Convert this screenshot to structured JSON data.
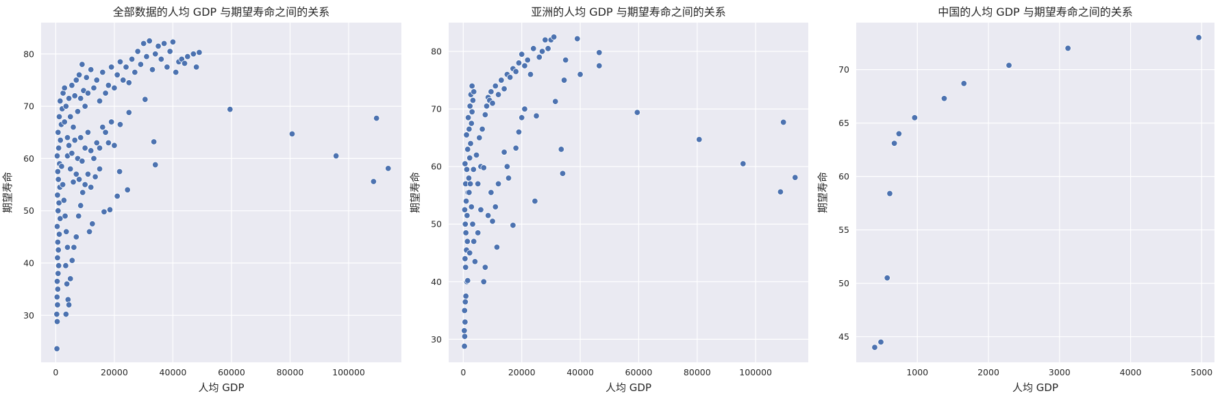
{
  "chart_data": [
    {
      "type": "scatter",
      "title": "全部数据的人均 GDP 与期望寿命之间的关系",
      "xlabel": "人均 GDP",
      "ylabel": "期望寿命",
      "xlim": [
        -5000,
        118000
      ],
      "ylim": [
        21,
        86
      ],
      "xticks": [
        0,
        20000,
        40000,
        60000,
        80000,
        100000
      ],
      "yticks": [
        30,
        40,
        50,
        60,
        70,
        80
      ],
      "grid": true,
      "marker_color": "#4c72b0",
      "points": [
        [
          400,
          23.6
        ],
        [
          500,
          28.8
        ],
        [
          350,
          30.2
        ],
        [
          600,
          32.0
        ],
        [
          450,
          33.5
        ],
        [
          700,
          35.0
        ],
        [
          500,
          36.5
        ],
        [
          800,
          38.0
        ],
        [
          1000,
          39.5
        ],
        [
          600,
          41.0
        ],
        [
          900,
          42.5
        ],
        [
          700,
          44.0
        ],
        [
          1200,
          45.5
        ],
        [
          500,
          47.0
        ],
        [
          1500,
          48.5
        ],
        [
          800,
          50.0
        ],
        [
          1100,
          51.5
        ],
        [
          600,
          53.0
        ],
        [
          1400,
          54.5
        ],
        [
          900,
          56.0
        ],
        [
          700,
          57.5
        ],
        [
          1300,
          59.0
        ],
        [
          500,
          60.5
        ],
        [
          1000,
          62.0
        ],
        [
          1600,
          63.5
        ],
        [
          800,
          65.0
        ],
        [
          1900,
          66.5
        ],
        [
          1200,
          68.0
        ],
        [
          2200,
          69.5
        ],
        [
          1500,
          71.0
        ],
        [
          2500,
          72.5
        ],
        [
          3000,
          73.5
        ],
        [
          2000,
          58.5
        ],
        [
          2400,
          55.0
        ],
        [
          2800,
          52.0
        ],
        [
          3200,
          49.0
        ],
        [
          3600,
          46.0
        ],
        [
          4000,
          43.0
        ],
        [
          3400,
          39.5
        ],
        [
          3800,
          36.0
        ],
        [
          4200,
          33.0
        ],
        [
          3500,
          30.2
        ],
        [
          4500,
          32.0
        ],
        [
          5000,
          37.0
        ],
        [
          5600,
          40.5
        ],
        [
          6200,
          43.0
        ],
        [
          7000,
          45.0
        ],
        [
          7800,
          49.0
        ],
        [
          8500,
          51.0
        ],
        [
          9200,
          53.5
        ],
        [
          10000,
          55.0
        ],
        [
          11000,
          57.0
        ],
        [
          12000,
          54.5
        ],
        [
          13500,
          56.5
        ],
        [
          15000,
          58.0
        ],
        [
          11500,
          46.0
        ],
        [
          12500,
          47.5
        ],
        [
          16500,
          49.8
        ],
        [
          18500,
          50.2
        ],
        [
          21000,
          52.8
        ],
        [
          21800,
          57.5
        ],
        [
          24500,
          54.0
        ],
        [
          20000,
          62.5
        ],
        [
          22000,
          66.5
        ],
        [
          25000,
          68.8
        ],
        [
          33500,
          63.2
        ],
        [
          34000,
          58.8
        ],
        [
          30500,
          71.3
        ],
        [
          3000,
          67.0
        ],
        [
          3500,
          70.0
        ],
        [
          4000,
          64.0
        ],
        [
          4500,
          71.5
        ],
        [
          5000,
          68.0
        ],
        [
          5500,
          74.0
        ],
        [
          6000,
          66.0
        ],
        [
          6500,
          72.0
        ],
        [
          7000,
          75.0
        ],
        [
          7500,
          69.0
        ],
        [
          8000,
          76.0
        ],
        [
          8500,
          71.5
        ],
        [
          9000,
          78.0
        ],
        [
          9500,
          73.0
        ],
        [
          10000,
          70.0
        ],
        [
          10500,
          75.5
        ],
        [
          11000,
          72.5
        ],
        [
          12000,
          77.0
        ],
        [
          13000,
          73.5
        ],
        [
          14000,
          75.0
        ],
        [
          15000,
          71.0
        ],
        [
          16000,
          76.5
        ],
        [
          17000,
          72.5
        ],
        [
          18000,
          74.0
        ],
        [
          19000,
          77.5
        ],
        [
          20000,
          73.5
        ],
        [
          21000,
          76.0
        ],
        [
          22000,
          78.5
        ],
        [
          23000,
          75.0
        ],
        [
          24000,
          77.5
        ],
        [
          25000,
          74.5
        ],
        [
          26000,
          79.0
        ],
        [
          27000,
          76.5
        ],
        [
          28000,
          80.5
        ],
        [
          29000,
          78.0
        ],
        [
          30000,
          82.0
        ],
        [
          31000,
          79.5
        ],
        [
          32000,
          82.5
        ],
        [
          33000,
          77.0
        ],
        [
          34000,
          80.0
        ],
        [
          35000,
          81.5
        ],
        [
          36000,
          79.0
        ],
        [
          37000,
          82.0
        ],
        [
          38000,
          77.5
        ],
        [
          39000,
          80.5
        ],
        [
          40000,
          82.3
        ],
        [
          41000,
          76.5
        ],
        [
          42000,
          78.5
        ],
        [
          43000,
          79.0
        ],
        [
          44000,
          78.2
        ],
        [
          45000,
          79.5
        ],
        [
          47000,
          80.0
        ],
        [
          48000,
          77.5
        ],
        [
          49000,
          80.3
        ],
        [
          4000,
          60.5
        ],
        [
          4500,
          62.5
        ],
        [
          5000,
          58.0
        ],
        [
          5500,
          61.0
        ],
        [
          6000,
          55.5
        ],
        [
          6500,
          63.5
        ],
        [
          7000,
          57.0
        ],
        [
          7500,
          60.0
        ],
        [
          8000,
          56.0
        ],
        [
          8500,
          64.0
        ],
        [
          9000,
          59.5
        ],
        [
          10000,
          62.0
        ],
        [
          11000,
          65.0
        ],
        [
          12000,
          61.5
        ],
        [
          13000,
          60.0
        ],
        [
          14000,
          63.0
        ],
        [
          15000,
          62.0
        ],
        [
          16000,
          66.0
        ],
        [
          17000,
          65.0
        ],
        [
          18000,
          63.0
        ],
        [
          19000,
          67.0
        ],
        [
          59500,
          69.4
        ],
        [
          80700,
          64.7
        ],
        [
          95700,
          60.5
        ],
        [
          108500,
          55.6
        ],
        [
          109500,
          67.7
        ],
        [
          113500,
          58.1
        ]
      ]
    },
    {
      "type": "scatter",
      "title": "亚洲的人均 GDP 与期望寿命之间的关系",
      "xlabel": "人均 GDP",
      "ylabel": "期望寿命",
      "xlim": [
        -5000,
        118000
      ],
      "ylim": [
        26,
        85
      ],
      "xticks": [
        0,
        20000,
        40000,
        60000,
        80000,
        100000
      ],
      "yticks": [
        30,
        40,
        50,
        60,
        70,
        80
      ],
      "grid": true,
      "marker_color": "#4c72b0",
      "points": [
        [
          400,
          28.8
        ],
        [
          500,
          30.5
        ],
        [
          350,
          31.5
        ],
        [
          600,
          33.0
        ],
        [
          450,
          35.0
        ],
        [
          700,
          36.5
        ],
        [
          900,
          37.5
        ],
        [
          1200,
          40.0
        ],
        [
          1500,
          40.2
        ],
        [
          800,
          42.5
        ],
        [
          600,
          44.0
        ],
        [
          1100,
          45.5
        ],
        [
          1400,
          47.0
        ],
        [
          900,
          48.5
        ],
        [
          700,
          50.0
        ],
        [
          1300,
          51.5
        ],
        [
          500,
          52.5
        ],
        [
          1000,
          54.0
        ],
        [
          1600,
          55.5
        ],
        [
          800,
          57.0
        ],
        [
          1900,
          58.0
        ],
        [
          1200,
          59.5
        ],
        [
          600,
          60.5
        ],
        [
          2200,
          61.5
        ],
        [
          1500,
          63.0
        ],
        [
          2500,
          64.0
        ],
        [
          1100,
          65.5
        ],
        [
          2000,
          66.5
        ],
        [
          2800,
          67.5
        ],
        [
          1700,
          68.5
        ],
        [
          3000,
          69.5
        ],
        [
          2300,
          70.5
        ],
        [
          3300,
          71.5
        ],
        [
          2600,
          72.5
        ],
        [
          3600,
          73.0
        ],
        [
          3000,
          74.0
        ],
        [
          2000,
          55.5
        ],
        [
          2400,
          57.0
        ],
        [
          2800,
          53.0
        ],
        [
          3200,
          50.0
        ],
        [
          3600,
          47.0
        ],
        [
          4000,
          43.5
        ],
        [
          2200,
          45.0
        ],
        [
          3500,
          59.5
        ],
        [
          4500,
          62.0
        ],
        [
          5000,
          57.0
        ],
        [
          5500,
          65.0
        ],
        [
          6000,
          60.0
        ],
        [
          6500,
          66.5
        ],
        [
          7000,
          59.8
        ],
        [
          7500,
          69.0
        ],
        [
          8000,
          70.5
        ],
        [
          8500,
          72.0
        ],
        [
          9000,
          71.5
        ],
        [
          9500,
          73.0
        ],
        [
          10000,
          71.0
        ],
        [
          11000,
          74.0
        ],
        [
          12000,
          72.5
        ],
        [
          13000,
          75.0
        ],
        [
          14000,
          73.5
        ],
        [
          15000,
          76.0
        ],
        [
          16000,
          75.5
        ],
        [
          17000,
          77.0
        ],
        [
          18000,
          76.5
        ],
        [
          19000,
          78.0
        ],
        [
          20000,
          79.5
        ],
        [
          21000,
          77.5
        ],
        [
          22000,
          78.5
        ],
        [
          23000,
          76.0
        ],
        [
          24000,
          80.5
        ],
        [
          26000,
          79.0
        ],
        [
          27000,
          80.0
        ],
        [
          28000,
          82.0
        ],
        [
          29000,
          80.5
        ],
        [
          30000,
          82.0
        ],
        [
          31000,
          82.5
        ],
        [
          35000,
          78.5
        ],
        [
          34500,
          75.0
        ],
        [
          40000,
          76.0
        ],
        [
          39000,
          82.2
        ],
        [
          46500,
          79.8
        ],
        [
          46500,
          77.5
        ],
        [
          5000,
          48.5
        ],
        [
          6000,
          52.5
        ],
        [
          7000,
          40.0
        ],
        [
          7500,
          42.5
        ],
        [
          8500,
          51.5
        ],
        [
          9500,
          55.5
        ],
        [
          10000,
          50.5
        ],
        [
          11000,
          53.0
        ],
        [
          12000,
          57.0
        ],
        [
          11500,
          46.0
        ],
        [
          14000,
          62.5
        ],
        [
          15000,
          60.0
        ],
        [
          15500,
          58.0
        ],
        [
          17000,
          49.8
        ],
        [
          18000,
          63.2
        ],
        [
          19000,
          66.0
        ],
        [
          20000,
          68.5
        ],
        [
          21000,
          70.0
        ],
        [
          24500,
          54.0
        ],
        [
          25000,
          68.8
        ],
        [
          31500,
          71.3
        ],
        [
          33500,
          63.0
        ],
        [
          34000,
          58.8
        ],
        [
          59500,
          69.4
        ],
        [
          80700,
          64.7
        ],
        [
          95700,
          60.5
        ],
        [
          108500,
          55.6
        ],
        [
          109500,
          67.7
        ],
        [
          113500,
          58.1
        ]
      ]
    },
    {
      "type": "scatter",
      "title": "中国的人均 GDP 与期望寿命之间的关系",
      "xlabel": "人均 GDP",
      "ylabel": "期望寿命",
      "xlim": [
        140,
        5180
      ],
      "ylim": [
        42.6,
        74.4
      ],
      "xticks": [
        1000,
        2000,
        3000,
        4000,
        5000
      ],
      "yticks": [
        45,
        50,
        55,
        60,
        65,
        70
      ],
      "grid": true,
      "marker_color": "#4c72b0",
      "points": [
        [
          400,
          44.0
        ],
        [
          576,
          50.5
        ],
        [
          487,
          44.5
        ],
        [
          612,
          58.4
        ],
        [
          676,
          63.1
        ],
        [
          741,
          64.0
        ],
        [
          962,
          65.5
        ],
        [
          1378,
          67.3
        ],
        [
          1655,
          68.7
        ],
        [
          2289,
          70.4
        ],
        [
          3119,
          72.0
        ],
        [
          4959,
          73.0
        ]
      ]
    }
  ]
}
